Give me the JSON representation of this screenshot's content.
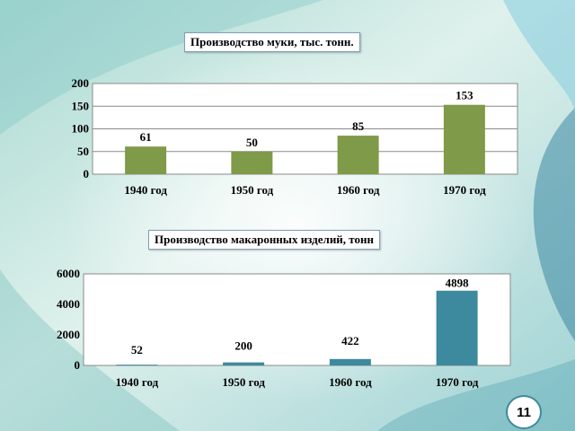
{
  "slide_number": "11",
  "colors": {
    "bar1": "#7f9a48",
    "bar2": "#3d8a9e"
  },
  "chart_data": [
    {
      "type": "bar",
      "title": "Производство муки, тыс. тонн.",
      "categories": [
        "1940 год",
        "1950 год",
        "1960 год",
        "1970 год"
      ],
      "values": [
        61,
        50,
        85,
        153
      ],
      "data_labels": [
        "61",
        "50",
        "85",
        "153"
      ],
      "ylim": [
        0,
        200
      ],
      "yticks": [
        0,
        50,
        100,
        150,
        200
      ],
      "ytick_labels": [
        "0",
        "50",
        "100",
        "150",
        "200"
      ],
      "grid": true
    },
    {
      "type": "bar",
      "title": "Производство макаронных изделий, тонн",
      "categories": [
        "1940 год",
        "1950 год",
        "1960 год",
        "1970 год"
      ],
      "values": [
        52,
        200,
        422,
        4898
      ],
      "data_labels": [
        "52",
        "200",
        "422",
        "4898"
      ],
      "ylim": [
        0,
        6000
      ],
      "yticks": [
        0,
        2000,
        4000,
        6000
      ],
      "ytick_labels": [
        "0",
        "2000",
        "4000",
        "6000"
      ],
      "grid": false
    }
  ]
}
